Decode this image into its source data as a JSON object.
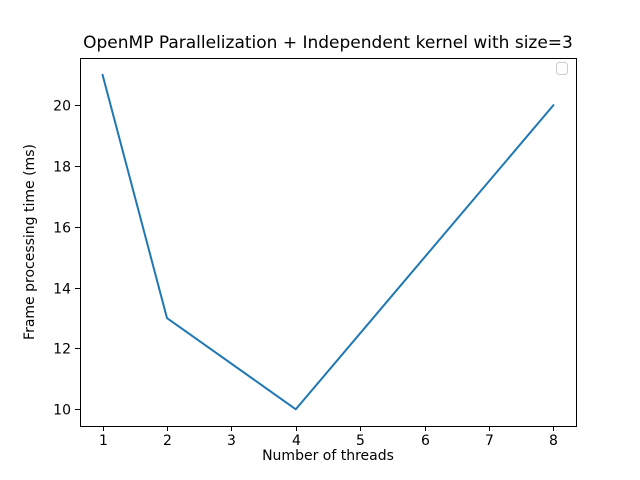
{
  "chart_data": {
    "type": "line",
    "title": "OpenMP Parallelization + Independent kernel with size=3",
    "xlabel": "Number of threads",
    "ylabel": "Frame processing time (ms)",
    "x": [
      1,
      2,
      4,
      8
    ],
    "series": [
      {
        "name": "",
        "values": [
          21,
          13,
          10,
          20
        ]
      }
    ],
    "xticks": [
      1,
      2,
      3,
      4,
      5,
      6,
      7,
      8
    ],
    "yticks": [
      10,
      12,
      14,
      16,
      18,
      20
    ],
    "xlim": [
      0.65,
      8.35
    ],
    "ylim": [
      9.45,
      21.55
    ],
    "grid": false,
    "legend": {
      "visible": true,
      "entries": [],
      "position": "upper right"
    }
  },
  "colors": {
    "line": "#1f77b4",
    "axis": "#000000",
    "legend_border": "#cccccc",
    "background": "#ffffff"
  }
}
